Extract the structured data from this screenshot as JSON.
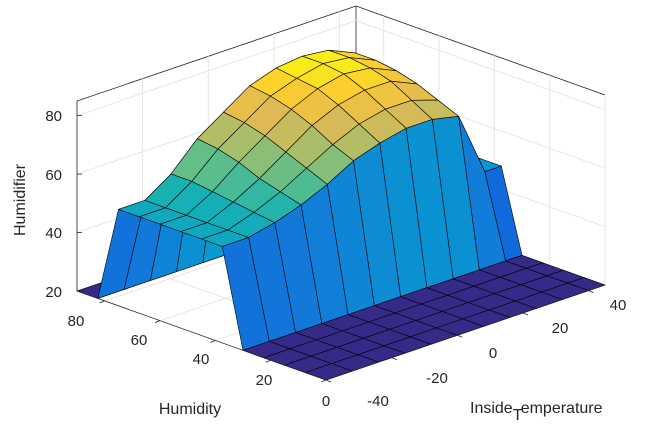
{
  "chart_data": {
    "type": "surface",
    "zlabel": "Humidifier",
    "xlabel": "Humidity",
    "ylabel_prefix": "Inside",
    "ylabel_subscript": "T",
    "ylabel_suffix": "emperature",
    "humidity_ticks": [
      "0",
      "20",
      "40",
      "60",
      "80"
    ],
    "temperature_ticks": [
      "-40",
      "-20",
      "0",
      "20",
      "40"
    ],
    "humidifier_ticks": [
      "20",
      "40",
      "60",
      "80"
    ],
    "humidity_range": [
      0,
      90
    ],
    "temperature_range": [
      -40,
      45
    ],
    "humidifier_range": [
      20,
      85
    ],
    "grid": true,
    "colormap": "parula",
    "surface": {
      "humidity_values": [
        0,
        7.5,
        15,
        22.5,
        30,
        37.5,
        45,
        52.5,
        60,
        67.5,
        75,
        82.5,
        90
      ],
      "temperature_values": [
        -40,
        -32,
        -24,
        -16,
        -8,
        0,
        8,
        16,
        24,
        32,
        40,
        45
      ],
      "humidifier": [
        [
          20,
          20,
          20,
          20,
          20,
          20,
          20,
          20,
          20,
          20,
          20,
          20
        ],
        [
          20,
          20,
          20,
          20,
          20,
          20,
          20,
          20,
          20,
          20,
          20,
          20
        ],
        [
          20,
          20,
          20,
          20,
          20,
          20,
          20,
          20,
          20,
          20,
          20,
          20
        ],
        [
          20,
          20,
          20,
          20,
          20,
          20,
          20,
          20,
          20,
          20,
          20,
          20
        ],
        [
          20,
          20,
          20,
          20,
          20,
          20,
          20,
          20,
          20,
          20,
          20,
          20
        ],
        [
          53,
          53,
          55,
          58,
          62,
          67,
          70,
          72,
          72,
          70,
          48,
          48
        ],
        [
          53,
          53,
          56,
          60,
          65,
          70,
          74,
          76,
          76,
          73,
          48,
          48
        ],
        [
          53,
          53,
          57,
          62,
          68,
          74,
          78,
          80,
          80,
          76,
          48,
          48
        ],
        [
          53,
          53,
          58,
          65,
          71,
          77,
          81,
          83,
          82,
          78,
          48,
          48
        ],
        [
          53,
          53,
          59,
          67,
          73,
          79,
          82,
          84,
          83,
          79,
          48,
          48
        ],
        [
          53,
          53,
          59,
          68,
          74,
          80,
          83,
          84,
          83,
          79,
          48,
          48
        ],
        [
          20,
          20,
          20,
          20,
          20,
          20,
          20,
          20,
          20,
          20,
          48,
          48
        ],
        [
          20,
          20,
          20,
          20,
          20,
          20,
          20,
          20,
          20,
          20,
          48,
          48
        ]
      ]
    }
  }
}
